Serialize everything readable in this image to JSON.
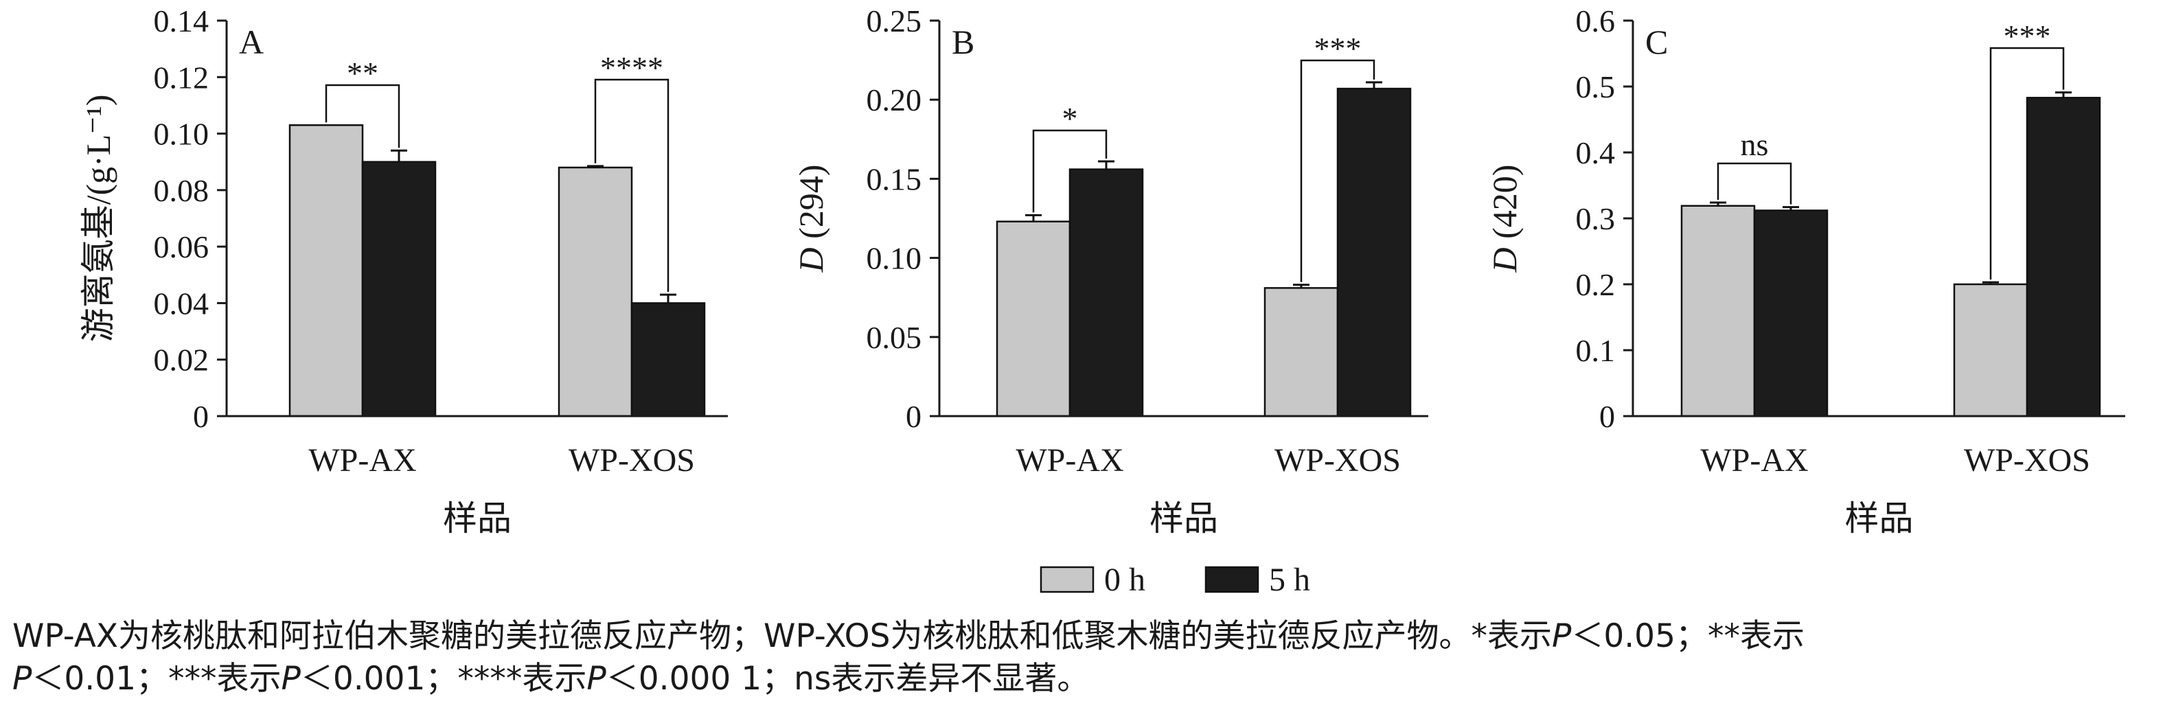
{
  "chart_data": [
    {
      "type": "bar",
      "panel": "A",
      "ylabel": "游离氨基/(g·L⁻¹)",
      "xlabel": "样品",
      "categories": [
        "WP-AX",
        "WP-XOS"
      ],
      "ylim": [
        0,
        0.14
      ],
      "yticks": [
        0,
        0.02,
        0.04,
        0.06,
        0.08,
        0.1,
        0.12,
        0.14
      ],
      "ytick_labels": [
        "0",
        "0.02",
        "0.04",
        "0.06",
        "0.08",
        "0.10",
        "0.12",
        "0.14"
      ],
      "series": [
        {
          "name": "0 h",
          "values": [
            0.103,
            0.088
          ],
          "errors": [
            0.0,
            0.0005
          ]
        },
        {
          "name": "5 h",
          "values": [
            0.09,
            0.04
          ],
          "errors": [
            0.004,
            0.003
          ]
        }
      ],
      "significance": [
        "**",
        "****"
      ]
    },
    {
      "type": "bar",
      "panel": "B",
      "ylabel_symbol": "D",
      "ylabel_rest": " (294)",
      "xlabel": "样品",
      "categories": [
        "WP-AX",
        "WP-XOS"
      ],
      "ylim": [
        0,
        0.25
      ],
      "yticks": [
        0,
        0.05,
        0.1,
        0.15,
        0.2,
        0.25
      ],
      "ytick_labels": [
        "0",
        "0.05",
        "0.10",
        "0.15",
        "0.20",
        "0.25"
      ],
      "series": [
        {
          "name": "0 h",
          "values": [
            0.123,
            0.081
          ],
          "errors": [
            0.004,
            0.002
          ]
        },
        {
          "name": "5 h",
          "values": [
            0.156,
            0.207
          ],
          "errors": [
            0.005,
            0.004
          ]
        }
      ],
      "significance": [
        "*",
        "***"
      ]
    },
    {
      "type": "bar",
      "panel": "C",
      "ylabel_symbol": "D",
      "ylabel_rest": " (420)",
      "xlabel": "样品",
      "categories": [
        "WP-AX",
        "WP-XOS"
      ],
      "ylim": [
        0,
        0.6
      ],
      "yticks": [
        0,
        0.1,
        0.2,
        0.3,
        0.4,
        0.5,
        0.6
      ],
      "ytick_labels": [
        "0",
        "0.1",
        "0.2",
        "0.3",
        "0.4",
        "0.5",
        "0.6"
      ],
      "series": [
        {
          "name": "0 h",
          "values": [
            0.319,
            0.2
          ],
          "errors": [
            0.005,
            0.003
          ]
        },
        {
          "name": "5 h",
          "values": [
            0.312,
            0.483
          ],
          "errors": [
            0.005,
            0.008
          ]
        }
      ],
      "significance": [
        "ns",
        "***"
      ]
    }
  ],
  "legend": {
    "position": "bottom-center",
    "entries": [
      {
        "label": "0 h",
        "color": "#c8c8c8"
      },
      {
        "label": "5 h",
        "color": "#1c1c1c"
      }
    ]
  },
  "colors": {
    "series_0h": "#c8c8c8",
    "series_5h": "#1c1c1c",
    "axis": "#1a1a1a"
  },
  "caption": {
    "line1_a": "WP-AX为核桃肽和阿拉伯木聚糖的美拉德反应产物；WP-XOS为核桃肽和低聚木糖的美拉德反应产物。*表示",
    "line1_p": "P",
    "line1_b": "＜0.05；**表示",
    "line2_p1": "P",
    "line2_a": "＜0.01；***表示",
    "line2_p2": "P",
    "line2_b": "＜0.001；****表示",
    "line2_p3": "P",
    "line2_c": "＜0.000 1；ns表示差异不显著。"
  }
}
